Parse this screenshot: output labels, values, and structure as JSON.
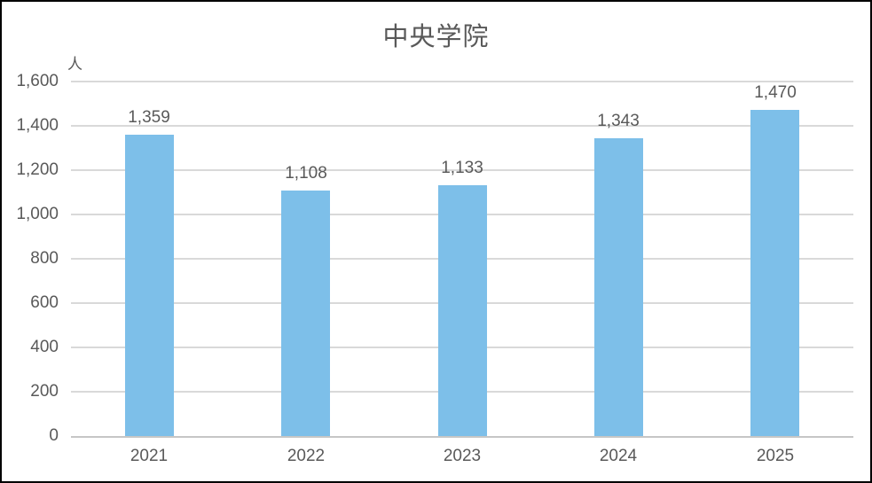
{
  "title": "中央学院",
  "colors": {
    "bar": "#7dbfe9",
    "title_text": "#595959",
    "axis_text": "#595959",
    "data_label_text": "#595959",
    "gridline": "#d9d9d9",
    "axis_line": "#c6c6c6",
    "border": "#000000",
    "background": "#ffffff"
  },
  "chart_data": {
    "type": "bar",
    "title": "中央学院",
    "categories": [
      "2021",
      "2022",
      "2023",
      "2024",
      "2025"
    ],
    "values": [
      1359,
      1108,
      1133,
      1343,
      1470
    ],
    "data_labels": [
      "1,359",
      "1,108",
      "1,133",
      "1,343",
      "1,470"
    ],
    "xlabel": "",
    "ylabel": "人",
    "ylim": [
      0,
      1600
    ],
    "ytick_interval": 200,
    "ytick_labels": [
      "0",
      "200",
      "400",
      "600",
      "800",
      "1,000",
      "1,200",
      "1,400",
      "1,600"
    ],
    "grid": true,
    "legend": false,
    "data_labels_shown": true
  }
}
